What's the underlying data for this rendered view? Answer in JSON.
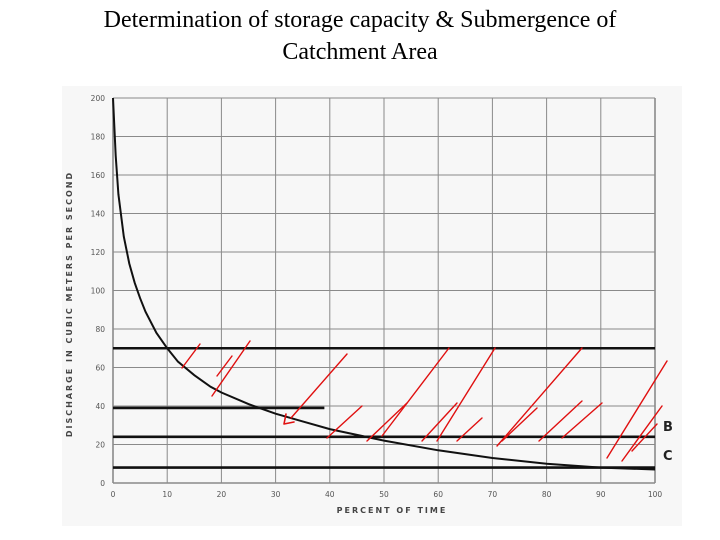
{
  "slide": {
    "title_line1": "Determination of storage capacity & Submergence of",
    "title_line2": "Catchment Area"
  },
  "colors": {
    "grid": "#8a8a8a",
    "curve": "#111111",
    "level_lines": "#111111",
    "annotation": "#e01010"
  },
  "chart_data": {
    "type": "line",
    "title": "",
    "xlabel": "PERCENT OF TIME",
    "ylabel": "DISCHARGE IN CUBIC METERS PER SECOND",
    "xlim": [
      0,
      100
    ],
    "ylim": [
      0,
      200
    ],
    "x_ticks": [
      "0",
      "10",
      "20",
      "30",
      "40",
      "50",
      "60",
      "70",
      "80",
      "90",
      "100"
    ],
    "y_ticks": [
      "0",
      "20",
      "40",
      "60",
      "80",
      "100",
      "120",
      "140",
      "160",
      "180",
      "200"
    ],
    "grid": true,
    "series": [
      {
        "x": [
          0,
          0.5,
          1,
          2,
          3,
          4,
          5,
          6,
          8,
          10,
          12,
          15,
          18,
          20,
          25,
          30,
          35,
          40,
          45,
          50,
          60,
          70,
          80,
          90,
          100
        ],
        "values": [
          200,
          170,
          150,
          128,
          114,
          104,
          96,
          89,
          78,
          70,
          63,
          56,
          50,
          47,
          41,
          36,
          32,
          28,
          25,
          22,
          17,
          13,
          10,
          8,
          7
        ]
      }
    ],
    "level_lines": [
      {
        "y": 70,
        "x_range": [
          0,
          100
        ]
      },
      {
        "y": 39,
        "x_range": [
          0,
          39
        ]
      },
      {
        "y": 24,
        "x_range": [
          0,
          100
        ]
      },
      {
        "y": 8,
        "x_range": [
          0,
          100
        ]
      }
    ],
    "side_labels": [
      {
        "text": "B",
        "y": 27
      },
      {
        "text": "C",
        "y": 12
      }
    ]
  }
}
